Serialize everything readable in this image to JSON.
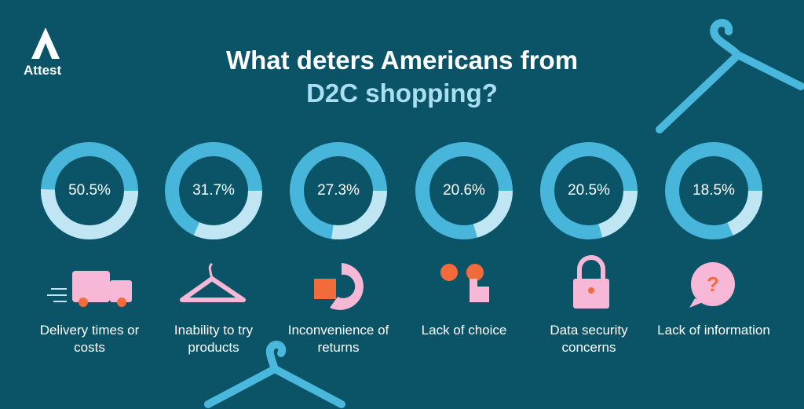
{
  "brand": "Attest",
  "chart_data": {
    "type": "donut",
    "title": "What deters Americans from",
    "title_highlight": "D2C shopping?",
    "categories": [
      "Delivery times or costs",
      "Inability to try products",
      "Inconvenience of returns",
      "Lack of choice",
      "Data security concerns",
      "Lack of information"
    ],
    "values": [
      50.5,
      31.7,
      27.3,
      20.6,
      20.5,
      18.5
    ],
    "value_labels": [
      "50.5%",
      "31.7%",
      "27.3%",
      "20.6%",
      "20.5%",
      "18.5%"
    ],
    "max": 100,
    "color": "#bfe6f2",
    "track_color": "#48b5db"
  }
}
